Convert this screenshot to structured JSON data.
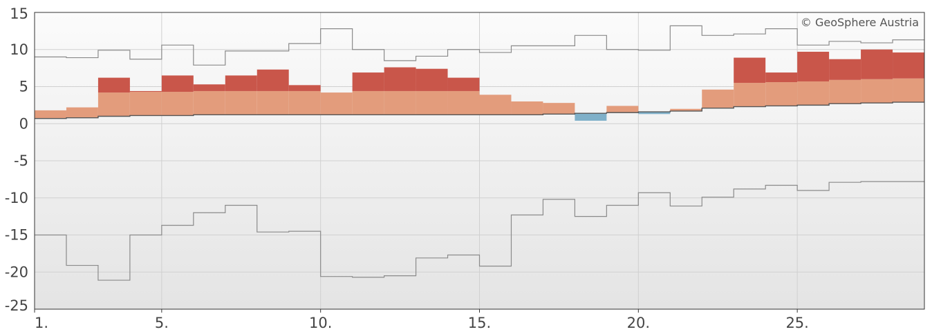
{
  "chart_data": {
    "type": "area",
    "copyright": "© GeoSphere Austria",
    "xlim": [
      1,
      29
    ],
    "ylim": [
      -25,
      15
    ],
    "xticks": [
      1,
      5,
      10,
      15,
      20,
      25
    ],
    "xtick_labels": [
      "1.",
      "5.",
      "10.",
      "15.",
      "20.",
      "25."
    ],
    "yticks": [
      15,
      10,
      5,
      0,
      -5,
      -10,
      -15,
      -20,
      -25
    ],
    "ytick_labels": [
      "15",
      "10",
      "5",
      "0",
      "-5",
      "-10",
      "-15",
      "-20",
      "-25"
    ],
    "grid": true,
    "days": [
      1,
      2,
      3,
      4,
      5,
      6,
      7,
      8,
      9,
      10,
      11,
      12,
      13,
      14,
      15,
      16,
      17,
      18,
      19,
      20,
      21,
      22,
      23,
      24,
      25,
      26,
      27,
      28
    ],
    "series": [
      {
        "key": "mean",
        "values": [
          0.7,
          0.8,
          1.0,
          1.1,
          1.1,
          1.2,
          1.2,
          1.2,
          1.2,
          1.2,
          1.2,
          1.2,
          1.2,
          1.2,
          1.2,
          1.2,
          1.3,
          1.4,
          1.5,
          1.6,
          1.7,
          2.1,
          2.3,
          2.4,
          2.5,
          2.7,
          2.8,
          2.9
        ]
      },
      {
        "key": "value",
        "values": [
          1.8,
          2.2,
          6.2,
          4.4,
          6.5,
          5.3,
          6.5,
          7.3,
          5.2,
          4.2,
          6.9,
          7.6,
          7.4,
          6.2,
          3.9,
          3.0,
          2.8,
          0.4,
          2.4,
          1.3,
          2.0,
          4.6,
          8.9,
          6.9,
          9.7,
          8.7,
          10.0,
          9.6
        ]
      },
      {
        "key": "upper",
        "values": [
          9.0,
          8.9,
          9.9,
          8.7,
          10.6,
          7.9,
          9.8,
          9.8,
          10.8,
          12.8,
          10.0,
          8.5,
          9.1,
          10.0,
          9.6,
          10.5,
          10.5,
          11.9,
          10.0,
          9.9,
          13.2,
          11.9,
          12.1,
          12.8,
          10.6,
          11.1,
          10.9,
          11.3
        ]
      },
      {
        "key": "lower",
        "values": [
          -15.0,
          -19.1,
          -21.1,
          -15.0,
          -13.7,
          -12.0,
          -11.0,
          -14.6,
          -14.5,
          -20.6,
          -20.7,
          -20.5,
          -18.1,
          -17.7,
          -19.2,
          -12.3,
          -10.2,
          -12.5,
          -11.0,
          -9.3,
          -11.1,
          -9.9,
          -8.8,
          -8.3,
          -9.0,
          -7.9,
          -7.8,
          -7.8
        ]
      }
    ],
    "colors": {
      "above_dark": "#c9564a",
      "above_light": "#e39c7c",
      "below": "#7fb0c9",
      "envelope": "#8a8a8a",
      "mean_line": "#555555",
      "grid": "#d0d0d0",
      "frame": "#333333"
    }
  }
}
